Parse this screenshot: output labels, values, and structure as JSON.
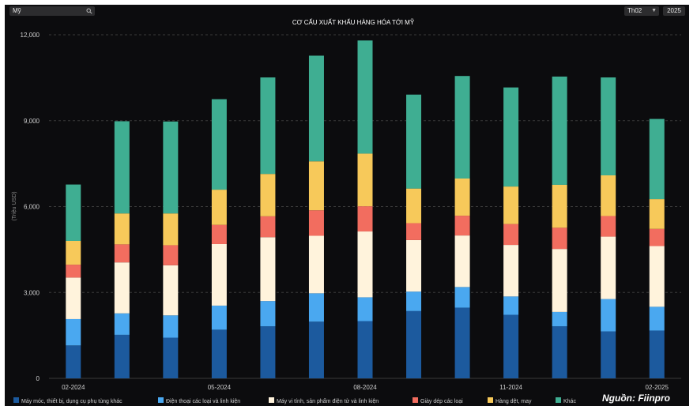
{
  "filter": {
    "value": "Mỹ",
    "icon": "search-icon"
  },
  "controls": {
    "month": "Th02",
    "year": "2025",
    "month_icon": "chevron-down-icon"
  },
  "source": "Nguồn: Fiinpro",
  "colors": {
    "panel": "#0c0c0e",
    "grid": "#3a3a3a",
    "axis_text": "#cfcfcf",
    "series": [
      "#1c5a9e",
      "#4aa8f0",
      "#fff3dc",
      "#f26d5f",
      "#f7c95a",
      "#3fae92"
    ]
  },
  "chart_data": {
    "type": "bar",
    "stacked": true,
    "title": "CƠ CẤU XUẤT KHẨU HÀNG HÓA TỚI MỸ",
    "ylabel": "(Triệu USD)",
    "xlabel": "",
    "ylim": [
      0,
      12000
    ],
    "yticks": [
      0,
      3000,
      6000,
      9000,
      12000
    ],
    "ytick_labels": [
      "0",
      "3,000",
      "6,000",
      "9,000",
      "12,000"
    ],
    "categories": [
      "02-2024",
      "03-2024",
      "04-2024",
      "05-2024",
      "06-2024",
      "07-2024",
      "08-2024",
      "09-2024",
      "10-2024",
      "11-2024",
      "12-2024",
      "01-2025",
      "02-2025"
    ],
    "xtick_labels": [
      {
        "index": 0,
        "label": "02-2024"
      },
      {
        "index": 3,
        "label": "05-2024"
      },
      {
        "index": 6,
        "label": "08-2024"
      },
      {
        "index": 9,
        "label": "11-2024"
      },
      {
        "index": 12,
        "label": "02-2025"
      }
    ],
    "legend_position": "bottom",
    "series": [
      {
        "name": "Máy móc, thiết bị, dụng cụ phụ tùng khác",
        "values": [
          1150,
          1520,
          1420,
          1700,
          1820,
          1980,
          2000,
          2350,
          2470,
          2220,
          1820,
          1640,
          1670
        ]
      },
      {
        "name": "Điện thoại các loại và linh kiện",
        "values": [
          920,
          750,
          780,
          840,
          880,
          990,
          830,
          680,
          720,
          640,
          500,
          1130,
          830
        ]
      },
      {
        "name": "Máy vi tính, sản phẩm điện tử và linh kiện",
        "values": [
          1450,
          1780,
          1750,
          2150,
          2230,
          2010,
          2300,
          1800,
          1800,
          1800,
          2200,
          2180,
          2120
        ]
      },
      {
        "name": "Giày dép các loại",
        "values": [
          450,
          630,
          700,
          670,
          730,
          890,
          880,
          590,
          690,
          730,
          740,
          720,
          600
        ]
      },
      {
        "name": "Hàng dệt, may",
        "values": [
          830,
          1080,
          1110,
          1230,
          1480,
          1710,
          1840,
          1210,
          1300,
          1310,
          1500,
          1420,
          1040
        ]
      },
      {
        "name": "Khác",
        "values": [
          1970,
          3220,
          3210,
          3160,
          3370,
          3690,
          3950,
          3280,
          3580,
          3460,
          3780,
          3420,
          2800
        ]
      }
    ]
  }
}
